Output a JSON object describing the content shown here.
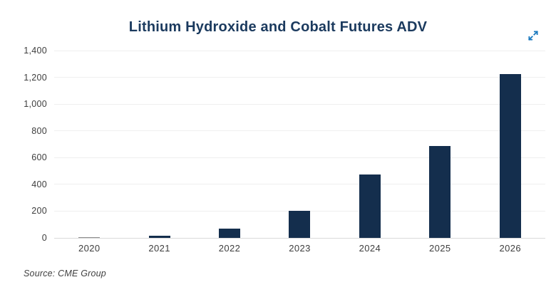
{
  "title": "Lithium Hydroxide and Cobalt Futures ADV",
  "source": "Source: CME Group",
  "controls": {
    "expand_icon": "expand-diagonal-arrows"
  },
  "colors": {
    "bar": "#142e4d",
    "tiny_bar": "#8e8e8e",
    "title": "#1b3a5e",
    "icon_blue": "#1878be",
    "gridline": "#efefef",
    "axis_line": "#d9d9d9",
    "tick_label": "#3d3d3d"
  },
  "chart_data": {
    "type": "bar",
    "categories": [
      "2020",
      "2021",
      "2022",
      "2023",
      "2024",
      "2025",
      "2026"
    ],
    "values": [
      2,
      15,
      70,
      200,
      475,
      685,
      1225
    ],
    "title": "Lithium Hydroxide and Cobalt Futures ADV",
    "xlabel": "",
    "ylabel": "",
    "ylim": [
      0,
      1400
    ],
    "yticks": [
      0,
      200,
      400,
      600,
      800,
      1000,
      1200,
      1400
    ],
    "ytick_labels": [
      "0",
      "200",
      "400",
      "600",
      "800",
      "1,000",
      "1,200",
      "1,400"
    ],
    "grid": true,
    "legend": false
  }
}
